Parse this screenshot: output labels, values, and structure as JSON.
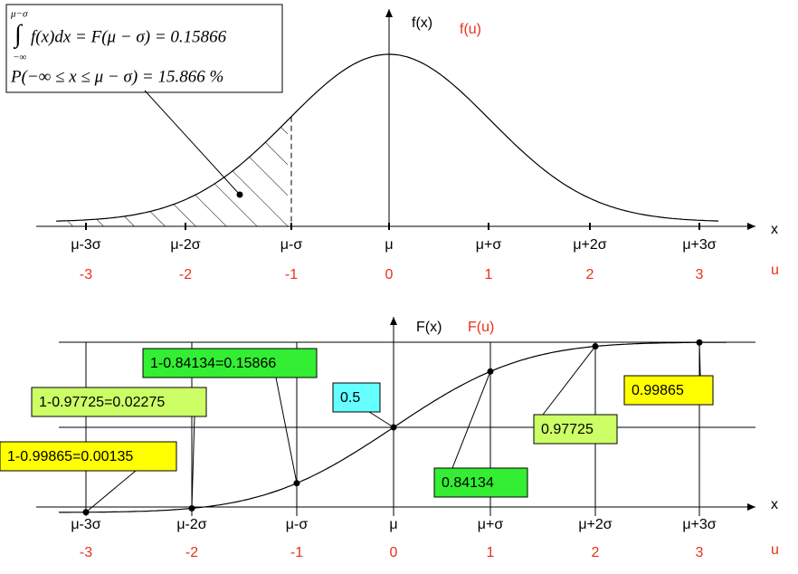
{
  "top": {
    "formula": {
      "upper_limit": "μ−σ",
      "lower_limit": "−∞",
      "integral": "∫",
      "integrand": "f(x)dx = F(μ − σ) = 0.15866",
      "probability": "P(−∞ ≤ x ≤ μ − σ) = 15.866 %"
    },
    "y_label": "f(x)",
    "y_label_u": "f(u)",
    "x_label": "x",
    "u_label": "u",
    "x_ticks": [
      "μ-3σ",
      "μ-2σ",
      "μ-σ",
      "μ",
      "μ+σ",
      "μ+2σ",
      "μ+3σ"
    ],
    "u_ticks": [
      "-3",
      "-2",
      "-1",
      "0",
      "1",
      "2",
      "3"
    ]
  },
  "bottom": {
    "y_label": "F(x)",
    "y_label_u": "F(u)",
    "x_label": "x",
    "u_label": "u",
    "x_ticks": [
      "μ-3σ",
      "μ-2σ",
      "μ-σ",
      "μ",
      "μ+σ",
      "μ+2σ",
      "μ+3σ"
    ],
    "u_ticks": [
      "-3",
      "-2",
      "-1",
      "0",
      "1",
      "2",
      "3"
    ],
    "callouts": [
      "1-0.99865=0.00135",
      "1-0.97725=0.02275",
      "1-0.84134=0.15866",
      "0.5",
      "0.84134",
      "0.97725",
      "0.99865"
    ]
  }
}
